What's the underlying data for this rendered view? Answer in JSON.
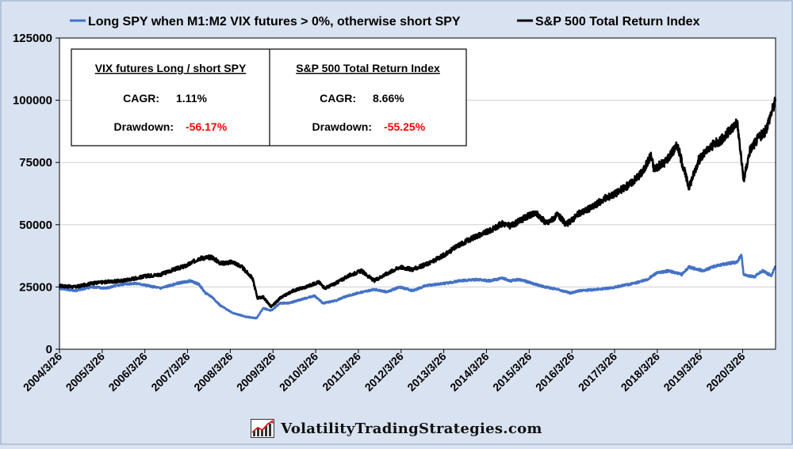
{
  "colors": {
    "background": "#d9e2f1",
    "strategy_line": "#4472c4",
    "index_line": "#000000",
    "negative": "#ff0000",
    "grid": "#d0d0d0"
  },
  "legend": [
    {
      "label": "Long SPY when M1:M2 VIX futures > 0%, otherwise short SPY",
      "color": "#4472c4"
    },
    {
      "label": "S&P 500 Total Return Index",
      "color": "#000000"
    }
  ],
  "stats_box": [
    {
      "title": "VIX futures Long / short SPY",
      "cagr_label": "CAGR:",
      "cagr_value": "1.11%",
      "drawdown_label": "Drawdown:",
      "drawdown_value": "-56.17%"
    },
    {
      "title": "S&P 500 Total Return Index",
      "cagr_label": "CAGR:",
      "cagr_value": "8.66%",
      "drawdown_label": "Drawdown:",
      "drawdown_value": "-55.25%"
    }
  ],
  "watermark": {
    "text": "VolatilityTradingStrategies.com",
    "icon": "rising-chart-logo-icon"
  },
  "chart_data": {
    "type": "line",
    "x_ticks": [
      "2004/3/26",
      "2005/3/26",
      "2006/3/26",
      "2007/3/26",
      "2008/3/26",
      "2009/3/26",
      "2010/3/26",
      "2011/3/26",
      "2012/3/26",
      "2013/3/26",
      "2014/3/26",
      "2015/3/26",
      "2016/3/26",
      "2017/3/26",
      "2018/3/26",
      "2019/3/26",
      "2020/3/26"
    ],
    "y_ticks": [
      0,
      25000,
      50000,
      75000,
      100000,
      125000
    ],
    "ylim": [
      0,
      125000
    ],
    "xlim": [
      2004.23,
      2021.0
    ],
    "grid": "horizontal",
    "series": [
      {
        "name": "S&P 500 Total Return Index",
        "color": "#000000",
        "points": [
          [
            2004.23,
            25500
          ],
          [
            2004.6,
            25000
          ],
          [
            2005.0,
            26500
          ],
          [
            2005.3,
            27000
          ],
          [
            2005.7,
            27500
          ],
          [
            2006.0,
            28500
          ],
          [
            2006.3,
            29500
          ],
          [
            2006.6,
            30000
          ],
          [
            2006.9,
            32000
          ],
          [
            2007.2,
            33500
          ],
          [
            2007.5,
            36500
          ],
          [
            2007.8,
            37000
          ],
          [
            2008.0,
            34500
          ],
          [
            2008.3,
            35000
          ],
          [
            2008.5,
            33000
          ],
          [
            2008.75,
            28500
          ],
          [
            2008.87,
            20500
          ],
          [
            2009.0,
            21000
          ],
          [
            2009.19,
            17000
          ],
          [
            2009.4,
            20500
          ],
          [
            2009.7,
            23500
          ],
          [
            2010.0,
            25000
          ],
          [
            2010.3,
            27000
          ],
          [
            2010.45,
            24500
          ],
          [
            2010.7,
            26500
          ],
          [
            2011.0,
            29500
          ],
          [
            2011.3,
            31500
          ],
          [
            2011.6,
            27500
          ],
          [
            2011.8,
            29500
          ],
          [
            2012.2,
            33000
          ],
          [
            2012.5,
            32000
          ],
          [
            2012.8,
            34000
          ],
          [
            2013.0,
            35500
          ],
          [
            2013.3,
            38500
          ],
          [
            2013.6,
            42000
          ],
          [
            2014.0,
            45500
          ],
          [
            2014.3,
            47500
          ],
          [
            2014.6,
            50500
          ],
          [
            2014.8,
            49500
          ],
          [
            2015.2,
            53500
          ],
          [
            2015.4,
            54500
          ],
          [
            2015.65,
            50500
          ],
          [
            2015.9,
            54000
          ],
          [
            2016.1,
            50000
          ],
          [
            2016.4,
            54500
          ],
          [
            2016.7,
            57000
          ],
          [
            2017.0,
            60500
          ],
          [
            2017.3,
            63000
          ],
          [
            2017.6,
            66500
          ],
          [
            2017.9,
            71500
          ],
          [
            2018.08,
            78000
          ],
          [
            2018.15,
            72500
          ],
          [
            2018.4,
            75000
          ],
          [
            2018.7,
            82000
          ],
          [
            2018.97,
            65000
          ],
          [
            2019.2,
            76000
          ],
          [
            2019.5,
            81500
          ],
          [
            2019.8,
            85000
          ],
          [
            2020.1,
            91500
          ],
          [
            2020.2,
            76000
          ],
          [
            2020.25,
            67500
          ],
          [
            2020.4,
            80000
          ],
          [
            2020.6,
            85000
          ],
          [
            2020.75,
            87000
          ],
          [
            2020.9,
            95000
          ],
          [
            2021.0,
            100000
          ]
        ]
      },
      {
        "name": "Long SPY when M1:M2 VIX futures > 0%, otherwise short SPY",
        "color": "#4472c4",
        "points": [
          [
            2004.23,
            24500
          ],
          [
            2004.6,
            23500
          ],
          [
            2005.0,
            25000
          ],
          [
            2005.3,
            24500
          ],
          [
            2005.7,
            26000
          ],
          [
            2006.0,
            26500
          ],
          [
            2006.3,
            25500
          ],
          [
            2006.6,
            24500
          ],
          [
            2007.0,
            26500
          ],
          [
            2007.3,
            27500
          ],
          [
            2007.5,
            26000
          ],
          [
            2007.65,
            22500
          ],
          [
            2007.8,
            21000
          ],
          [
            2008.0,
            17500
          ],
          [
            2008.3,
            14500
          ],
          [
            2008.6,
            13000
          ],
          [
            2008.85,
            12500
          ],
          [
            2009.0,
            16500
          ],
          [
            2009.19,
            15500
          ],
          [
            2009.4,
            18500
          ],
          [
            2009.6,
            18500
          ],
          [
            2009.9,
            20000
          ],
          [
            2010.2,
            21500
          ],
          [
            2010.4,
            18500
          ],
          [
            2010.7,
            19500
          ],
          [
            2010.9,
            21000
          ],
          [
            2011.2,
            22500
          ],
          [
            2011.6,
            24000
          ],
          [
            2011.9,
            23000
          ],
          [
            2012.2,
            25000
          ],
          [
            2012.5,
            23500
          ],
          [
            2012.8,
            25500
          ],
          [
            2013.0,
            26000
          ],
          [
            2013.3,
            26500
          ],
          [
            2013.6,
            27500
          ],
          [
            2014.0,
            28000
          ],
          [
            2014.3,
            27500
          ],
          [
            2014.6,
            28500
          ],
          [
            2014.8,
            27500
          ],
          [
            2015.0,
            28000
          ],
          [
            2015.3,
            26500
          ],
          [
            2015.6,
            25000
          ],
          [
            2015.9,
            24000
          ],
          [
            2016.2,
            22500
          ],
          [
            2016.4,
            23500
          ],
          [
            2016.8,
            24000
          ],
          [
            2017.1,
            24500
          ],
          [
            2017.4,
            25500
          ],
          [
            2017.7,
            26500
          ],
          [
            2018.0,
            28000
          ],
          [
            2018.2,
            30500
          ],
          [
            2018.5,
            31500
          ],
          [
            2018.8,
            30000
          ],
          [
            2018.97,
            33000
          ],
          [
            2019.3,
            31500
          ],
          [
            2019.6,
            33500
          ],
          [
            2019.9,
            34500
          ],
          [
            2020.1,
            35000
          ],
          [
            2020.2,
            38000
          ],
          [
            2020.25,
            30000
          ],
          [
            2020.5,
            29000
          ],
          [
            2020.7,
            31500
          ],
          [
            2020.9,
            29500
          ],
          [
            2021.0,
            33500
          ]
        ]
      }
    ]
  }
}
